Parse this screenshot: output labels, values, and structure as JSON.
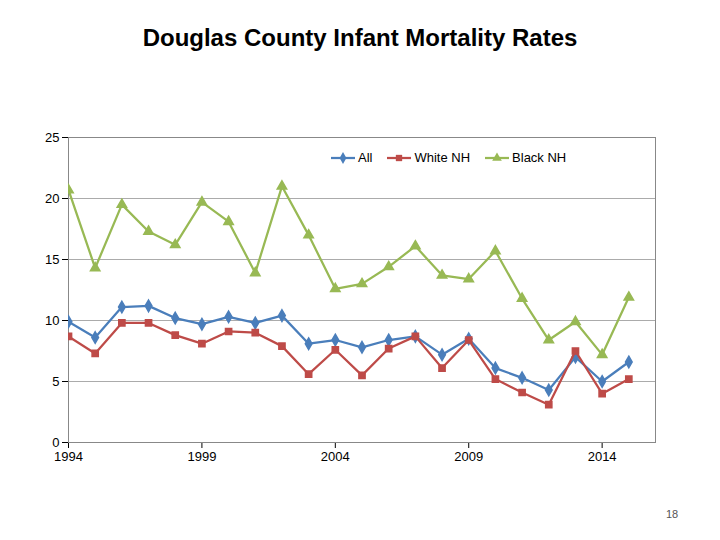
{
  "chart_data": {
    "type": "line",
    "title": "Douglas County Infant Mortality Rates",
    "x": [
      1994,
      1995,
      1996,
      1997,
      1998,
      1999,
      2000,
      2001,
      2002,
      2003,
      2004,
      2005,
      2006,
      2007,
      2008,
      2009,
      2010,
      2011,
      2012,
      2013,
      2014,
      2015
    ],
    "series": [
      {
        "name": "All",
        "color": "#4a7ebb",
        "marker": "diamond",
        "values": [
          9.9,
          8.6,
          11.1,
          11.2,
          10.2,
          9.7,
          10.3,
          9.8,
          10.4,
          8.1,
          8.4,
          7.8,
          8.4,
          8.7,
          7.2,
          8.5,
          6.1,
          5.3,
          4.3,
          7.0,
          5.0,
          6.6
        ]
      },
      {
        "name": "White NH",
        "color": "#be4b48",
        "marker": "square",
        "values": [
          8.7,
          7.3,
          9.8,
          9.8,
          8.8,
          8.1,
          9.1,
          9.0,
          7.9,
          5.6,
          7.6,
          5.5,
          7.7,
          8.7,
          6.1,
          8.4,
          5.2,
          4.1,
          3.1,
          7.5,
          4.0,
          5.2
        ]
      },
      {
        "name": "Black NH",
        "color": "#98b954",
        "marker": "triangle",
        "values": [
          20.7,
          14.3,
          19.5,
          17.3,
          16.2,
          19.7,
          18.1,
          13.9,
          21.0,
          17.0,
          12.6,
          13.0,
          14.4,
          16.1,
          13.7,
          13.4,
          15.7,
          11.8,
          8.4,
          9.9,
          7.2,
          11.9
        ]
      }
    ],
    "xlim": [
      1994,
      2016
    ],
    "xticks": [
      1994,
      1999,
      2004,
      2009,
      2014
    ],
    "ylim": [
      0,
      25
    ],
    "yticks": [
      0,
      5,
      10,
      15,
      20,
      25
    ],
    "grid": true,
    "legend": "top-right",
    "annotations": [
      "18"
    ]
  }
}
